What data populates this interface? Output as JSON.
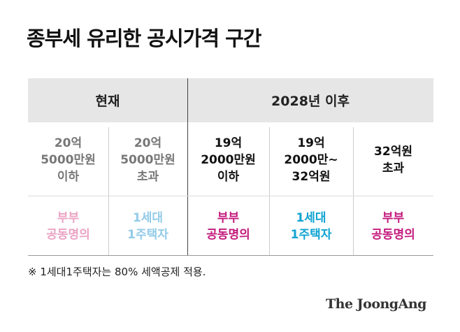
{
  "title": "종부세 유리한 공시가격 구간",
  "table": {
    "groups": [
      "현재",
      "2028년 이후"
    ],
    "rows": [
      [
        [
          "20억",
          "5000만원",
          "이하"
        ],
        [
          "20억",
          "5000만원",
          "초과"
        ],
        [
          "19억",
          "2000만원",
          "이하"
        ],
        [
          "19억",
          "2000만~",
          "32억원"
        ],
        [
          "32억원",
          "초과"
        ]
      ],
      [
        [
          "부부",
          "공동명의"
        ],
        [
          "1세대",
          "1주택자"
        ],
        [
          "부부",
          "공동명의"
        ],
        [
          "1세대",
          "1주택자"
        ],
        [
          "부부",
          "공동명의"
        ]
      ]
    ]
  },
  "footnote": "※ 1세대1주택자는 80% 세액공제 적용.",
  "source": "The JoongAng"
}
